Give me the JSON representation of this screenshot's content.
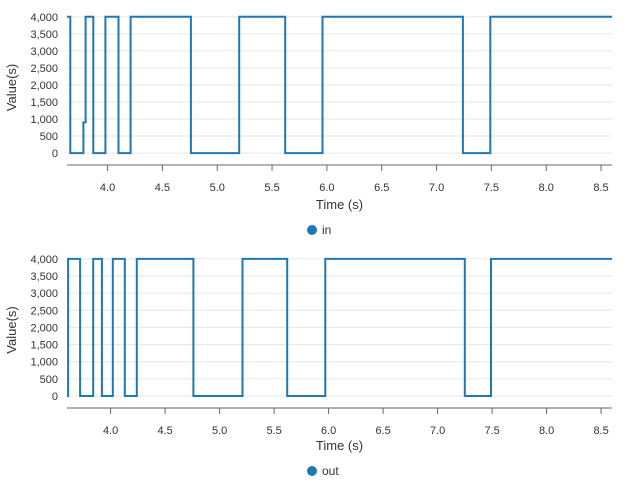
{
  "chart_data": [
    {
      "type": "line",
      "xlabel": "Time (s)",
      "ylabel": "Value(s)",
      "xlim": [
        3.63,
        8.6
      ],
      "ylim": [
        -350,
        4200
      ],
      "xticks": [
        4.0,
        4.5,
        5.0,
        5.5,
        6.0,
        6.5,
        7.0,
        7.5,
        8.0,
        8.5
      ],
      "xtick_labels": [
        "4.0",
        "4.5",
        "5.0",
        "5.5",
        "6.0",
        "6.5",
        "7.0",
        "7.5",
        "8.0",
        "8.5"
      ],
      "yticks": [
        0,
        500,
        1000,
        1500,
        2000,
        2500,
        3000,
        3500,
        4000
      ],
      "ytick_labels": [
        "0",
        "500",
        "1,000",
        "1,500",
        "2,000",
        "2,500",
        "3,000",
        "3,500",
        "4,000"
      ],
      "grid": true,
      "legend_position": "bottom-center",
      "series": [
        {
          "name": "in",
          "color": "#1f77b4",
          "x": [
            3.63,
            3.66,
            3.66,
            3.78,
            3.78,
            3.8,
            3.8,
            3.87,
            3.87,
            3.98,
            3.98,
            4.1,
            4.1,
            4.21,
            4.21,
            4.76,
            4.76,
            5.2,
            5.2,
            5.62,
            5.62,
            5.96,
            5.96,
            7.24,
            7.24,
            7.49,
            7.49,
            8.6
          ],
          "y": [
            4000,
            4000,
            0,
            0,
            900,
            900,
            4000,
            4000,
            0,
            0,
            4000,
            4000,
            0,
            0,
            4000,
            4000,
            0,
            0,
            4000,
            4000,
            0,
            0,
            4000,
            4000,
            0,
            0,
            4000,
            4000
          ]
        }
      ]
    },
    {
      "type": "line",
      "xlabel": "Time (s)",
      "ylabel": "Value(s)",
      "xlim": [
        3.6,
        8.6
      ],
      "ylim": [
        -350,
        4200
      ],
      "xticks": [
        4.0,
        4.5,
        5.0,
        5.5,
        6.0,
        6.5,
        7.0,
        7.5,
        8.0,
        8.5
      ],
      "xtick_labels": [
        "4.0",
        "4.5",
        "5.0",
        "5.5",
        "6.0",
        "6.5",
        "7.0",
        "7.5",
        "8.0",
        "8.5"
      ],
      "yticks": [
        0,
        500,
        1000,
        1500,
        2000,
        2500,
        3000,
        3500,
        4000
      ],
      "ytick_labels": [
        "0",
        "500",
        "1,000",
        "1,500",
        "2,000",
        "2,500",
        "3,000",
        "3,500",
        "4,000"
      ],
      "grid": true,
      "legend_position": "bottom-center",
      "series": [
        {
          "name": "out",
          "color": "#1f77b4",
          "x": [
            3.6,
            3.61,
            3.61,
            3.72,
            3.72,
            3.84,
            3.84,
            3.92,
            3.92,
            4.02,
            4.02,
            4.13,
            4.13,
            4.24,
            4.24,
            4.76,
            4.76,
            5.21,
            5.21,
            5.62,
            5.62,
            5.97,
            5.97,
            7.25,
            7.25,
            7.49,
            7.49,
            8.6
          ],
          "y": [
            0,
            0,
            4000,
            4000,
            0,
            0,
            4000,
            4000,
            0,
            0,
            4000,
            4000,
            0,
            0,
            4000,
            4000,
            0,
            0,
            4000,
            4000,
            0,
            0,
            4000,
            4000,
            0,
            0,
            4000,
            4000
          ]
        }
      ]
    }
  ]
}
